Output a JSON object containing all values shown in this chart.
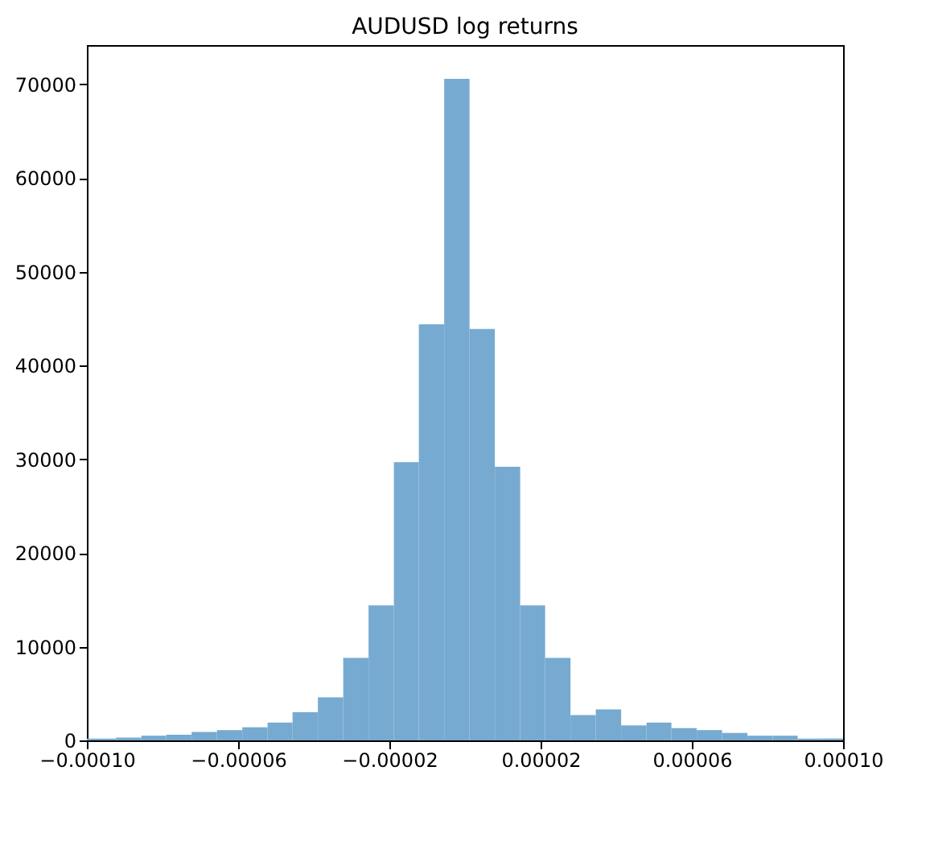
{
  "chart_data": {
    "type": "histogram",
    "title": "AUDUSD log returns",
    "bins": [
      -0.0001,
      -9.9e-05,
      -9.23e-05,
      -8.56e-05,
      -7.9e-05,
      -7.23e-05,
      -6.56e-05,
      -5.89e-05,
      -5.22e-05,
      -4.56e-05,
      -3.89e-05,
      -3.22e-05,
      -2.55e-05,
      -1.88e-05,
      -1.22e-05,
      -5.5e-06,
      1.2e-06,
      7.9e-06,
      1.46e-05,
      2.12e-05,
      2.79e-05,
      3.46e-05,
      4.13e-05,
      4.8e-05,
      5.46e-05,
      6.13e-05,
      6.8e-05,
      7.47e-05,
      8.14e-05,
      8.8e-05,
      9.47e-05,
      0.0001
    ],
    "values": [
      200,
      200,
      300,
      500,
      600,
      900,
      1100,
      1400,
      1900,
      3000,
      4600,
      8800,
      14400,
      29700,
      44400,
      70600,
      43900,
      29200,
      14400,
      8800,
      2700,
      3300,
      1600,
      1900,
      1300,
      1100,
      800,
      500,
      500,
      200,
      200
    ],
    "color": "#77aad0",
    "xlim": [
      -0.0001,
      0.0001
    ],
    "xticks": [
      {
        "value": -0.0001,
        "label": "−0.00010"
      },
      {
        "value": -6e-05,
        "label": "−0.00006"
      },
      {
        "value": -2e-05,
        "label": "−0.00002"
      },
      {
        "value": 2e-05,
        "label": "0.00002"
      },
      {
        "value": 6e-05,
        "label": "0.00006"
      },
      {
        "value": 0.0001,
        "label": "0.00010"
      }
    ],
    "ylim": [
      0,
      74200
    ],
    "yticks": [
      0,
      10000,
      20000,
      30000,
      40000,
      50000,
      60000,
      70000
    ],
    "grid": false
  }
}
